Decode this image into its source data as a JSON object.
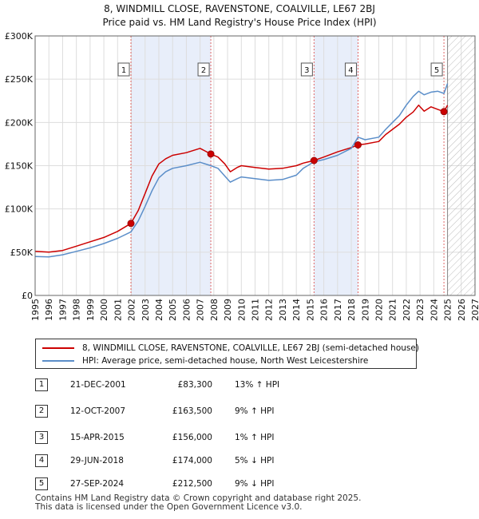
{
  "chart_data": {
    "type": "line",
    "title": "8, WINDMILL CLOSE, RAVENSTONE, COALVILLE, LE67 2BJ",
    "subtitle": "Price paid vs. HM Land Registry's House Price Index (HPI)",
    "xlabel": "",
    "ylabel": "",
    "xlim": [
      1995,
      2027
    ],
    "ylim": [
      0,
      300000
    ],
    "y_ticks": [
      {
        "value": 0,
        "label": "£0"
      },
      {
        "value": 50000,
        "label": "£50K"
      },
      {
        "value": 100000,
        "label": "£100K"
      },
      {
        "value": 150000,
        "label": "£150K"
      },
      {
        "value": 200000,
        "label": "£200K"
      },
      {
        "value": 250000,
        "label": "£250K"
      },
      {
        "value": 300000,
        "label": "£300K"
      }
    ],
    "x_ticks": [
      "1995",
      "1996",
      "1997",
      "1998",
      "1999",
      "2000",
      "2001",
      "2002",
      "2003",
      "2004",
      "2005",
      "2006",
      "2007",
      "2008",
      "2009",
      "2010",
      "2011",
      "2012",
      "2013",
      "2014",
      "2015",
      "2016",
      "2017",
      "2018",
      "2019",
      "2020",
      "2021",
      "2022",
      "2023",
      "2024",
      "2025",
      "2026",
      "2027"
    ],
    "grid": true,
    "future_hatch_from": 2025.0,
    "series": [
      {
        "name": "8, WINDMILL CLOSE, RAVENSTONE, COALVILLE, LE67 2BJ (semi-detached house)",
        "color": "#cc0000",
        "points": [
          [
            1995.0,
            51000
          ],
          [
            1996.0,
            50000
          ],
          [
            1997.0,
            52000
          ],
          [
            1998.0,
            57000
          ],
          [
            1999.0,
            62000
          ],
          [
            2000.0,
            67000
          ],
          [
            2001.0,
            74000
          ],
          [
            2001.97,
            83300
          ],
          [
            2002.5,
            98000
          ],
          [
            2003.0,
            118000
          ],
          [
            2003.5,
            138000
          ],
          [
            2004.0,
            152000
          ],
          [
            2004.5,
            158000
          ],
          [
            2005.0,
            162000
          ],
          [
            2006.0,
            165000
          ],
          [
            2007.0,
            170000
          ],
          [
            2007.78,
            163500
          ],
          [
            2008.3,
            160000
          ],
          [
            2008.8,
            152000
          ],
          [
            2009.2,
            143000
          ],
          [
            2009.7,
            148000
          ],
          [
            2010.0,
            150000
          ],
          [
            2011.0,
            148000
          ],
          [
            2012.0,
            146000
          ],
          [
            2013.0,
            147000
          ],
          [
            2014.0,
            150000
          ],
          [
            2014.5,
            153000
          ],
          [
            2015.29,
            156000
          ],
          [
            2016.0,
            160000
          ],
          [
            2017.0,
            166000
          ],
          [
            2018.0,
            171000
          ],
          [
            2018.49,
            174000
          ],
          [
            2019.0,
            175000
          ],
          [
            2020.0,
            178000
          ],
          [
            2020.5,
            186000
          ],
          [
            2021.0,
            192000
          ],
          [
            2021.5,
            198000
          ],
          [
            2022.0,
            206000
          ],
          [
            2022.5,
            212000
          ],
          [
            2022.9,
            220000
          ],
          [
            2023.3,
            213000
          ],
          [
            2023.8,
            218000
          ],
          [
            2024.3,
            215000
          ],
          [
            2024.74,
            212500
          ],
          [
            2025.0,
            220000
          ]
        ]
      },
      {
        "name": "HPI: Average price, semi-detached house, North West Leicestershire",
        "color": "#5b8ec9",
        "points": [
          [
            1995.0,
            45000
          ],
          [
            1996.0,
            44500
          ],
          [
            1997.0,
            47000
          ],
          [
            1998.0,
            51000
          ],
          [
            1999.0,
            55000
          ],
          [
            2000.0,
            60000
          ],
          [
            2001.0,
            66000
          ],
          [
            2001.97,
            73500
          ],
          [
            2002.5,
            86000
          ],
          [
            2003.0,
            103000
          ],
          [
            2003.5,
            121000
          ],
          [
            2004.0,
            136000
          ],
          [
            2004.5,
            143000
          ],
          [
            2005.0,
            147000
          ],
          [
            2006.0,
            150000
          ],
          [
            2007.0,
            154000
          ],
          [
            2007.78,
            150000
          ],
          [
            2008.3,
            147000
          ],
          [
            2008.8,
            138000
          ],
          [
            2009.2,
            131000
          ],
          [
            2009.7,
            135000
          ],
          [
            2010.0,
            137000
          ],
          [
            2011.0,
            135000
          ],
          [
            2012.0,
            133000
          ],
          [
            2013.0,
            134000
          ],
          [
            2014.0,
            139000
          ],
          [
            2014.5,
            147000
          ],
          [
            2015.29,
            154500
          ],
          [
            2016.0,
            157000
          ],
          [
            2017.0,
            162000
          ],
          [
            2018.0,
            170000
          ],
          [
            2018.49,
            183000
          ],
          [
            2019.0,
            180000
          ],
          [
            2020.0,
            183000
          ],
          [
            2020.5,
            192000
          ],
          [
            2021.0,
            200000
          ],
          [
            2021.5,
            208000
          ],
          [
            2022.0,
            220000
          ],
          [
            2022.5,
            230000
          ],
          [
            2022.9,
            236000
          ],
          [
            2023.3,
            232000
          ],
          [
            2023.8,
            235000
          ],
          [
            2024.3,
            236000
          ],
          [
            2024.74,
            233500
          ],
          [
            2025.0,
            245000
          ]
        ]
      }
    ],
    "sales": [
      {
        "num": "1",
        "x": 2001.97,
        "value": 83300,
        "date": "21-DEC-2001",
        "price": "£83,300",
        "hpi": "13% ↑ HPI"
      },
      {
        "num": "2",
        "x": 2007.78,
        "value": 163500,
        "date": "12-OCT-2007",
        "price": "£163,500",
        "hpi": "9% ↑ HPI"
      },
      {
        "num": "3",
        "x": 2015.29,
        "value": 156000,
        "date": "15-APR-2015",
        "price": "£156,000",
        "hpi": "1% ↑ HPI"
      },
      {
        "num": "4",
        "x": 2018.49,
        "value": 174000,
        "date": "29-JUN-2018",
        "price": "£174,000",
        "hpi": "5% ↓ HPI"
      },
      {
        "num": "5",
        "x": 2024.74,
        "value": 212500,
        "date": "27-SEP-2024",
        "price": "£212,500",
        "hpi": "9% ↓ HPI"
      }
    ],
    "shaded_ranges": [
      [
        2001.97,
        2007.78
      ],
      [
        2015.29,
        2018.49
      ]
    ]
  },
  "legend": {
    "property_label": "8, WINDMILL CLOSE, RAVENSTONE, COALVILLE, LE67 2BJ (semi-detached house)",
    "hpi_label": "HPI: Average price, semi-detached house, North West Leicestershire"
  },
  "footer": {
    "line1": "Contains HM Land Registry data © Crown copyright and database right 2025.",
    "line2": "This data is licensed under the Open Government Licence v3.0."
  }
}
